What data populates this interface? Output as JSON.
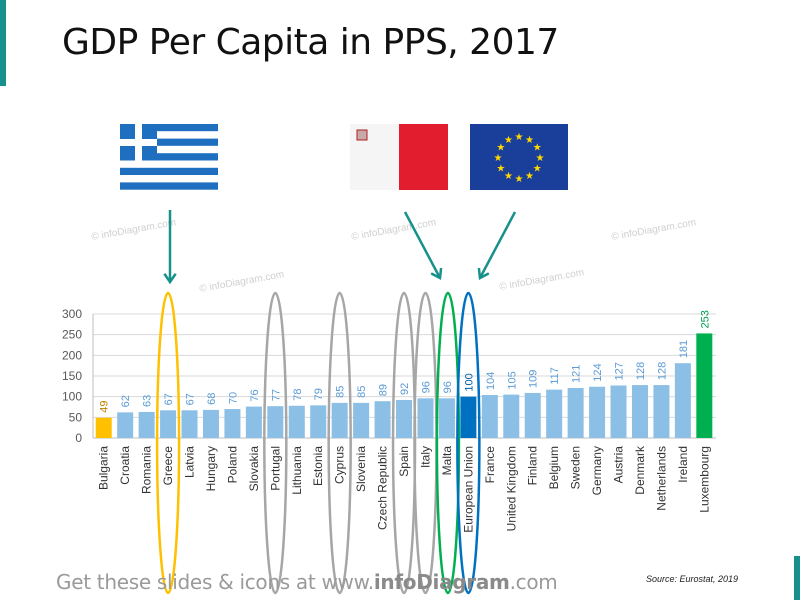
{
  "title": "GDP Per Capita in PPS, 2017",
  "footer": {
    "prefix": "Get these slides & icons at www.",
    "brand": "infoDiagram",
    "suffix": ".com"
  },
  "source": "Source: Eurostat, 2019",
  "watermark": "© infoDiagram.com",
  "flags": [
    "greece-flag",
    "malta-flag",
    "eu-flag"
  ],
  "colors": {
    "default_bar": "#8bbfe5",
    "lowest": "#ffc000",
    "highest": "#00b050",
    "eu": "#0070c0",
    "highlight_gray": "#a6a6a6",
    "arrow": "#17918b"
  },
  "chart_data": {
    "type": "bar",
    "ylim": [
      0,
      300
    ],
    "yticks": [
      0,
      50,
      100,
      150,
      200,
      250,
      300
    ],
    "grid": true,
    "categories": [
      "Bulgaria",
      "Croatia",
      "Romania",
      "Greece",
      "Latvia",
      "Hungary",
      "Poland",
      "Slovakia",
      "Portugal",
      "Lithuania",
      "Estonia",
      "Cyprus",
      "Slovenia",
      "Czech Republic",
      "Spain",
      "Italy",
      "Malta",
      "European Union",
      "France",
      "United Kingdom",
      "Finland",
      "Belgium",
      "Sweden",
      "Germany",
      "Austria",
      "Denmark",
      "Netherlands",
      "Ireland",
      "Luxembourg"
    ],
    "values": [
      49,
      62,
      63,
      67,
      67,
      68,
      70,
      76,
      77,
      78,
      79,
      85,
      85,
      89,
      92,
      96,
      96,
      100,
      104,
      105,
      109,
      117,
      121,
      124,
      127,
      128,
      128,
      181,
      253
    ],
    "highlighted": {
      "Greece": "#ffc000",
      "Portugal": "#a6a6a6",
      "Cyprus": "#a6a6a6",
      "Spain": "#a6a6a6",
      "Italy": "#a6a6a6",
      "Malta": "#00b050",
      "European Union": "#0070c0"
    }
  }
}
